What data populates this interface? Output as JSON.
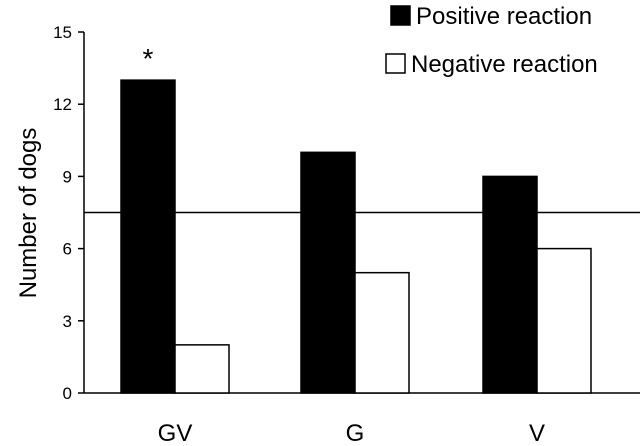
{
  "chart_data": {
    "type": "bar",
    "categories": [
      "GV",
      "G",
      "V"
    ],
    "series": [
      {
        "name": "Positive reaction",
        "values": [
          13,
          10,
          9
        ],
        "color": "#000000"
      },
      {
        "name": "Negative reaction",
        "values": [
          2,
          5,
          6
        ],
        "color": "#ffffff"
      }
    ],
    "ylabel": "Number of dogs",
    "xlabel": "",
    "ylim": [
      0,
      15
    ],
    "yticks": [
      0,
      3,
      6,
      9,
      12,
      15
    ],
    "reference_line": 7.5,
    "annotations": [
      {
        "category": "GV",
        "series": "Positive reaction",
        "text": "*"
      }
    ],
    "legend_placement": "top-right",
    "grid": false
  }
}
